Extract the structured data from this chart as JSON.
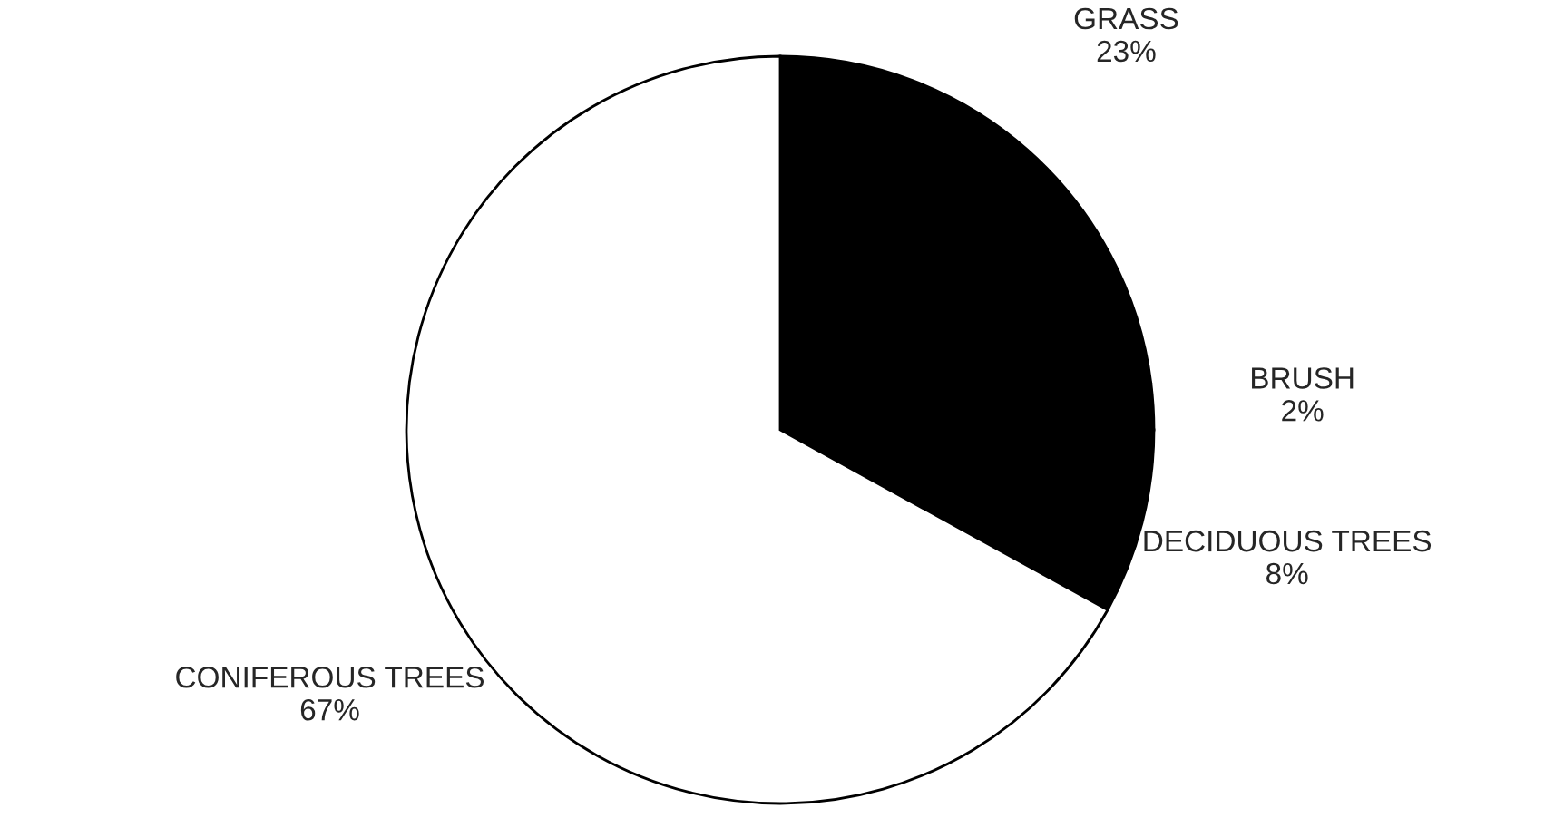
{
  "chart_data": {
    "type": "pie",
    "categories": [
      "GRASS",
      "BRUSH",
      "DECIDUOUS TREES",
      "CONIFEROUS TREES"
    ],
    "values": [
      23,
      2,
      8,
      67
    ],
    "colors": [
      "#000000",
      "#000000",
      "#000000",
      "#ffffff"
    ],
    "value_labels": [
      "23%",
      "2%",
      "8%",
      "67%"
    ],
    "legend": false
  }
}
